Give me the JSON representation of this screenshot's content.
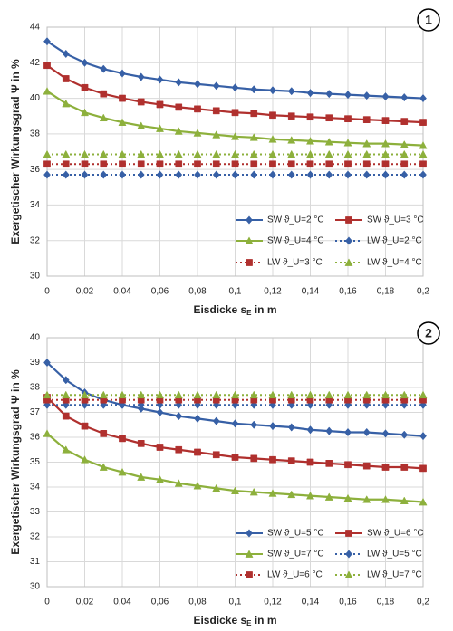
{
  "chart_data": [
    {
      "type": "line",
      "label": "1",
      "y_label": "Exergetischer Wirkungsgrad Ψ in %",
      "x_label_parts": [
        "Eisdicke s",
        "E",
        " in m"
      ],
      "x": [
        0,
        0.01,
        0.02,
        0.03,
        0.04,
        0.05,
        0.06,
        0.07,
        0.08,
        0.09,
        0.1,
        0.11,
        0.12,
        0.13,
        0.14,
        0.15,
        0.16,
        0.17,
        0.18,
        0.19,
        0.2
      ],
      "xlim": [
        0,
        0.2
      ],
      "xticks": [
        0,
        {
          "value": 0.02,
          "label": "0,02"
        },
        {
          "value": 0.04,
          "label": "0,04"
        },
        {
          "value": 0.06,
          "label": "0,06"
        },
        {
          "value": 0.08,
          "label": "0,08"
        },
        {
          "value": 0.1,
          "label": "0,1"
        },
        {
          "value": 0.12,
          "label": "0,12"
        },
        {
          "value": 0.14,
          "label": "0,14"
        },
        {
          "value": 0.16,
          "label": "0,16"
        },
        {
          "value": 0.18,
          "label": "0,18"
        },
        {
          "value": 0.2,
          "label": "0,2"
        }
      ],
      "ylim": [
        30,
        44
      ],
      "yticks": [
        30,
        32,
        34,
        36,
        38,
        40,
        42,
        44
      ],
      "grid": true,
      "series": [
        {
          "name": "SW ϑ_U=2 °C",
          "color": "#3760a6",
          "line": "solid",
          "marker": "diamond",
          "values": [
            43.2,
            42.5,
            42.0,
            41.65,
            41.4,
            41.2,
            41.05,
            40.9,
            40.8,
            40.7,
            40.6,
            40.5,
            40.45,
            40.4,
            40.3,
            40.25,
            40.2,
            40.15,
            40.1,
            40.05,
            40.0
          ]
        },
        {
          "name": "SW ϑ_U=3 °C",
          "color": "#b0302e",
          "line": "solid",
          "marker": "square",
          "values": [
            41.85,
            41.1,
            40.6,
            40.25,
            40.0,
            39.8,
            39.65,
            39.5,
            39.4,
            39.3,
            39.2,
            39.15,
            39.05,
            39.0,
            38.95,
            38.9,
            38.85,
            38.8,
            38.75,
            38.7,
            38.65
          ]
        },
        {
          "name": "SW ϑ_U=4 °C",
          "color": "#8db03c",
          "line": "solid",
          "marker": "triangle",
          "values": [
            40.4,
            39.7,
            39.2,
            38.9,
            38.65,
            38.45,
            38.3,
            38.15,
            38.05,
            37.95,
            37.85,
            37.8,
            37.7,
            37.65,
            37.6,
            37.55,
            37.5,
            37.45,
            37.45,
            37.4,
            37.35
          ]
        },
        {
          "name": "LW ϑ_U=2 °C",
          "color": "#3760a6",
          "line": "dotted",
          "marker": "diamond",
          "values": [
            35.7,
            35.7,
            35.7,
            35.7,
            35.7,
            35.7,
            35.7,
            35.7,
            35.7,
            35.7,
            35.7,
            35.7,
            35.7,
            35.7,
            35.7,
            35.7,
            35.7,
            35.7,
            35.7,
            35.7,
            35.7
          ]
        },
        {
          "name": "LW ϑ_U=3 °C",
          "color": "#b0302e",
          "line": "dotted",
          "marker": "square",
          "values": [
            36.3,
            36.3,
            36.3,
            36.3,
            36.3,
            36.3,
            36.3,
            36.3,
            36.3,
            36.3,
            36.3,
            36.3,
            36.3,
            36.3,
            36.3,
            36.3,
            36.3,
            36.3,
            36.3,
            36.3,
            36.3
          ]
        },
        {
          "name": "LW ϑ_U=4 °C",
          "color": "#8db03c",
          "line": "dotted",
          "marker": "triangle",
          "values": [
            36.85,
            36.85,
            36.85,
            36.85,
            36.85,
            36.85,
            36.85,
            36.85,
            36.85,
            36.85,
            36.85,
            36.85,
            36.85,
            36.85,
            36.85,
            36.85,
            36.85,
            36.85,
            36.85,
            36.85,
            36.85
          ]
        }
      ]
    },
    {
      "type": "line",
      "label": "2",
      "y_label": "Exergetischer Wirkungsgrad Ψ in %",
      "x_label_parts": [
        "Eisdicke s",
        "E",
        " in m"
      ],
      "x": [
        0,
        0.01,
        0.02,
        0.03,
        0.04,
        0.05,
        0.06,
        0.07,
        0.08,
        0.09,
        0.1,
        0.11,
        0.12,
        0.13,
        0.14,
        0.15,
        0.16,
        0.17,
        0.18,
        0.19,
        0.2
      ],
      "xlim": [
        0,
        0.2
      ],
      "xticks": [
        0,
        {
          "value": 0.02,
          "label": "0,02"
        },
        {
          "value": 0.04,
          "label": "0,04"
        },
        {
          "value": 0.06,
          "label": "0,06"
        },
        {
          "value": 0.08,
          "label": "0,08"
        },
        {
          "value": 0.1,
          "label": "0,1"
        },
        {
          "value": 0.12,
          "label": "0,12"
        },
        {
          "value": 0.14,
          "label": "0,14"
        },
        {
          "value": 0.16,
          "label": "0,16"
        },
        {
          "value": 0.18,
          "label": "0,18"
        },
        {
          "value": 0.2,
          "label": "0,2"
        }
      ],
      "ylim": [
        30,
        40
      ],
      "yticks": [
        30,
        31,
        32,
        33,
        34,
        35,
        36,
        37,
        38,
        39,
        40
      ],
      "grid": true,
      "series": [
        {
          "name": "SW ϑ_U=5 °C",
          "color": "#3760a6",
          "line": "solid",
          "marker": "diamond",
          "values": [
            39.0,
            38.3,
            37.8,
            37.5,
            37.3,
            37.15,
            37.0,
            36.85,
            36.75,
            36.65,
            36.55,
            36.5,
            36.45,
            36.4,
            36.3,
            36.25,
            36.2,
            36.2,
            36.15,
            36.1,
            36.05
          ]
        },
        {
          "name": "SW ϑ_U=6 °C",
          "color": "#b0302e",
          "line": "solid",
          "marker": "square",
          "values": [
            37.6,
            36.85,
            36.45,
            36.15,
            35.95,
            35.75,
            35.6,
            35.5,
            35.4,
            35.3,
            35.2,
            35.15,
            35.1,
            35.05,
            35.0,
            34.95,
            34.9,
            34.85,
            34.8,
            34.8,
            34.75
          ]
        },
        {
          "name": "SW ϑ_U=7 °C",
          "color": "#8db03c",
          "line": "solid",
          "marker": "triangle",
          "values": [
            36.15,
            35.5,
            35.1,
            34.8,
            34.6,
            34.4,
            34.3,
            34.15,
            34.05,
            33.95,
            33.85,
            33.8,
            33.75,
            33.7,
            33.65,
            33.6,
            33.55,
            33.5,
            33.5,
            33.45,
            33.4
          ]
        },
        {
          "name": "LW ϑ_U=5 °C",
          "color": "#3760a6",
          "line": "dotted",
          "marker": "diamond",
          "values": [
            37.3,
            37.3,
            37.3,
            37.3,
            37.3,
            37.3,
            37.3,
            37.3,
            37.3,
            37.3,
            37.3,
            37.3,
            37.3,
            37.3,
            37.3,
            37.3,
            37.3,
            37.3,
            37.3,
            37.3,
            37.3
          ]
        },
        {
          "name": "LW ϑ_U=6 °C",
          "color": "#b0302e",
          "line": "dotted",
          "marker": "square",
          "values": [
            37.5,
            37.5,
            37.5,
            37.5,
            37.5,
            37.5,
            37.5,
            37.5,
            37.5,
            37.5,
            37.5,
            37.5,
            37.5,
            37.5,
            37.5,
            37.5,
            37.5,
            37.5,
            37.5,
            37.5,
            37.5
          ]
        },
        {
          "name": "LW ϑ_U=7 °C",
          "color": "#8db03c",
          "line": "dotted",
          "marker": "triangle",
          "values": [
            37.7,
            37.7,
            37.7,
            37.7,
            37.7,
            37.7,
            37.7,
            37.7,
            37.7,
            37.7,
            37.7,
            37.7,
            37.7,
            37.7,
            37.7,
            37.7,
            37.7,
            37.7,
            37.7,
            37.7,
            37.7
          ]
        }
      ]
    }
  ]
}
